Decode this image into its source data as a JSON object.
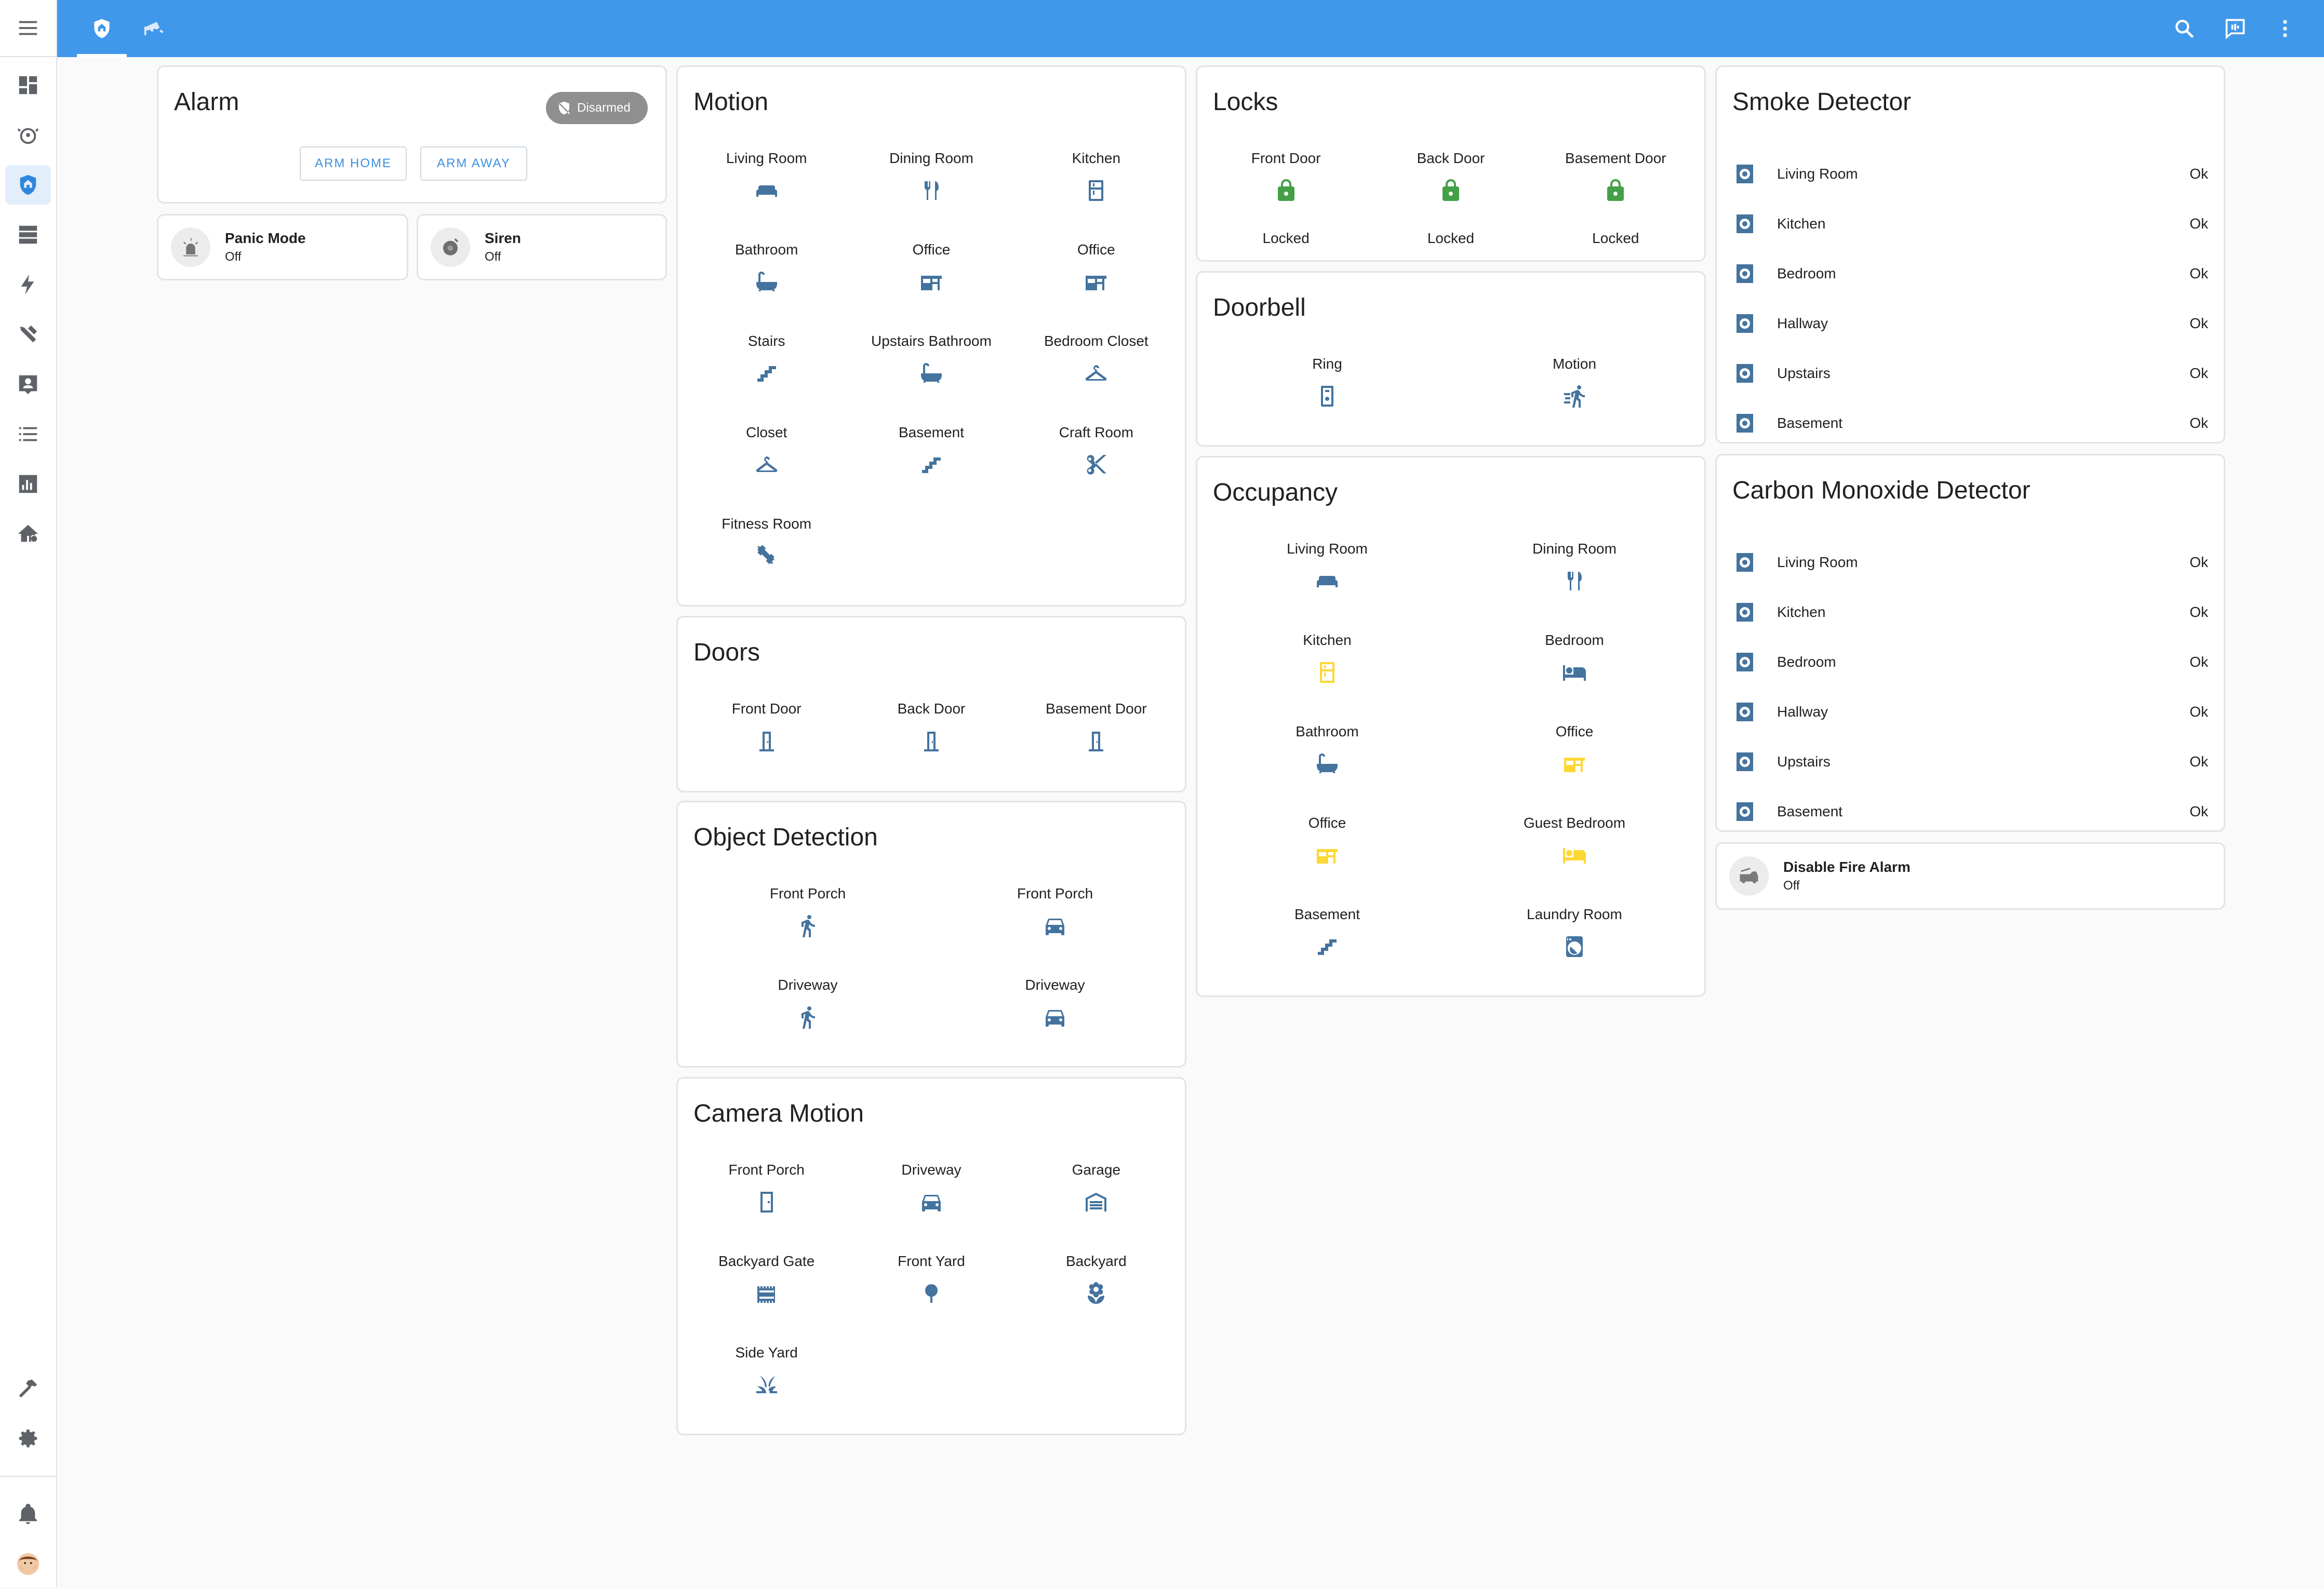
{
  "colors": {
    "header": "#4098ea",
    "icon": "#44739e",
    "active": "#fdd835",
    "locked": "#43a047",
    "disarmed_badge": "#8f8f8f",
    "accent_text": "#3b8fe0"
  },
  "header": {
    "tabs": [
      {
        "icon": "shield-home-icon",
        "selected": true
      },
      {
        "icon": "cctv-icon",
        "selected": false
      }
    ],
    "actions": [
      "search-icon",
      "assist-chat-icon",
      "overflow-menu-icon"
    ]
  },
  "sidebar": {
    "menu_icon": "menu-icon",
    "items": [
      "view-dashboard-icon",
      "robot-vacuum-icon",
      "shield-home-icon",
      "server-icon",
      "lightning-icon",
      "tools-icon",
      "account-box-icon",
      "list-icon",
      "chart-icon",
      "home-cog-icon"
    ],
    "bottom_items": [
      "hammer-icon",
      "cog-icon",
      "bell-icon",
      "avatar"
    ]
  },
  "alarm": {
    "title": "Alarm",
    "state": "Disarmed",
    "buttons": [
      "ARM HOME",
      "ARM AWAY"
    ]
  },
  "entities": {
    "panic": {
      "name": "Panic Mode",
      "state": "Off"
    },
    "siren": {
      "name": "Siren",
      "state": "Off"
    },
    "fire": {
      "name": "Disable Fire Alarm",
      "state": "Off"
    }
  },
  "motion": {
    "title": "Motion",
    "items": [
      {
        "name": "Living Room",
        "icon": "sofa"
      },
      {
        "name": "Dining Room",
        "icon": "silverware"
      },
      {
        "name": "Kitchen",
        "icon": "fridge"
      },
      {
        "name": "Bathroom",
        "icon": "bathtub"
      },
      {
        "name": "Office",
        "icon": "desk"
      },
      {
        "name": "Office",
        "icon": "desk"
      },
      {
        "name": "Stairs",
        "icon": "stairs"
      },
      {
        "name": "Upstairs Bathroom",
        "icon": "bathtub"
      },
      {
        "name": "Bedroom Closet",
        "icon": "hanger"
      },
      {
        "name": "Closet",
        "icon": "hanger"
      },
      {
        "name": "Basement",
        "icon": "stairs"
      },
      {
        "name": "Craft Room",
        "icon": "scissors"
      },
      {
        "name": "Fitness Room",
        "icon": "dumbbell"
      }
    ]
  },
  "doors": {
    "title": "Doors",
    "items": [
      {
        "name": "Front Door",
        "icon": "door"
      },
      {
        "name": "Back Door",
        "icon": "door"
      },
      {
        "name": "Basement Door",
        "icon": "door"
      }
    ]
  },
  "object_detection": {
    "title": "Object Detection",
    "items": [
      {
        "name": "Front Porch",
        "icon": "walk"
      },
      {
        "name": "Front Porch",
        "icon": "car"
      },
      {
        "name": "Driveway",
        "icon": "walk"
      },
      {
        "name": "Driveway",
        "icon": "car"
      }
    ]
  },
  "camera_motion": {
    "title": "Camera Motion",
    "items": [
      {
        "name": "Front Porch",
        "icon": "door-closed"
      },
      {
        "name": "Driveway",
        "icon": "car"
      },
      {
        "name": "Garage",
        "icon": "garage"
      },
      {
        "name": "Backyard Gate",
        "icon": "gate"
      },
      {
        "name": "Front Yard",
        "icon": "tree"
      },
      {
        "name": "Backyard",
        "icon": "flower"
      },
      {
        "name": "Side Yard",
        "icon": "grass"
      }
    ]
  },
  "locks": {
    "title": "Locks",
    "items": [
      {
        "name": "Front Door",
        "state": "Locked"
      },
      {
        "name": "Back Door",
        "state": "Locked"
      },
      {
        "name": "Basement Door",
        "state": "Locked"
      }
    ]
  },
  "doorbell": {
    "title": "Doorbell",
    "items": [
      {
        "name": "Ring",
        "icon": "doorbell"
      },
      {
        "name": "Motion",
        "icon": "run"
      }
    ]
  },
  "occupancy": {
    "title": "Occupancy",
    "items": [
      {
        "name": "Living Room",
        "icon": "sofa",
        "active": false
      },
      {
        "name": "Dining Room",
        "icon": "silverware",
        "active": false
      },
      {
        "name": "Kitchen",
        "icon": "fridge",
        "active": true
      },
      {
        "name": "Bedroom",
        "icon": "bed",
        "active": false
      },
      {
        "name": "Bathroom",
        "icon": "bathtub",
        "active": false
      },
      {
        "name": "Office",
        "icon": "desk",
        "active": true
      },
      {
        "name": "Office",
        "icon": "desk",
        "active": true
      },
      {
        "name": "Guest Bedroom",
        "icon": "bed",
        "active": true
      },
      {
        "name": "Basement",
        "icon": "stairs",
        "active": false
      },
      {
        "name": "Laundry Room",
        "icon": "washer",
        "active": false
      }
    ]
  },
  "smoke": {
    "title": "Smoke Detector",
    "items": [
      {
        "name": "Living Room",
        "state": "Ok"
      },
      {
        "name": "Kitchen",
        "state": "Ok"
      },
      {
        "name": "Bedroom",
        "state": "Ok"
      },
      {
        "name": "Hallway",
        "state": "Ok"
      },
      {
        "name": "Upstairs",
        "state": "Ok"
      },
      {
        "name": "Basement",
        "state": "Ok"
      }
    ]
  },
  "co": {
    "title": "Carbon Monoxide Detector",
    "items": [
      {
        "name": "Living Room",
        "state": "Ok"
      },
      {
        "name": "Kitchen",
        "state": "Ok"
      },
      {
        "name": "Bedroom",
        "state": "Ok"
      },
      {
        "name": "Hallway",
        "state": "Ok"
      },
      {
        "name": "Upstairs",
        "state": "Ok"
      },
      {
        "name": "Basement",
        "state": "Ok"
      }
    ]
  }
}
